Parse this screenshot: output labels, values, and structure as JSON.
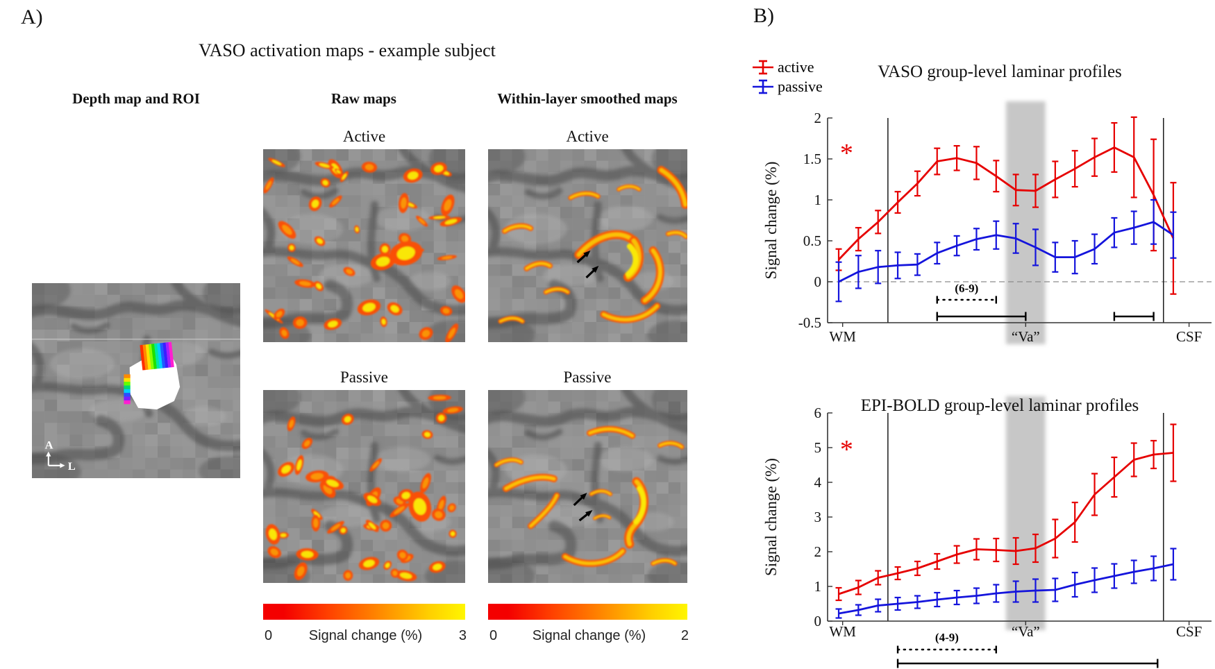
{
  "panel_a": {
    "label": "A)",
    "title": "VASO activation maps - example subject",
    "column_headers": [
      "Depth map and ROI",
      "Raw maps",
      "Within-layer smoothed maps"
    ],
    "row_labels": {
      "active": "Active",
      "passive": "Passive"
    },
    "orientation_labels": {
      "up": "A",
      "right": "L"
    },
    "hot_colormap": [
      "#f40000",
      "#ff4000",
      "#ff9000",
      "#ffcf00",
      "#fff600"
    ],
    "colorbars": [
      {
        "min": "0",
        "label": "Signal change (%)",
        "max": "3"
      },
      {
        "min": "0",
        "label": "Signal change (%)",
        "max": "2"
      }
    ]
  },
  "panel_b": {
    "label": "B)",
    "legend": [
      {
        "label": "active",
        "color": "#e60000"
      },
      {
        "label": "passive",
        "color": "#1414dc"
      }
    ]
  },
  "chart_data": [
    {
      "type": "line",
      "title": "VASO group-level laminar profiles",
      "ylabel": "Signal change (%)",
      "ylim": [
        -0.5,
        2
      ],
      "yticks": [
        -0.5,
        0,
        0.5,
        1,
        1.5,
        2
      ],
      "n_layers": 18,
      "x_axis_labels": [
        {
          "text": "WM",
          "pos": 1.2
        },
        {
          "text": "“Va”",
          "pos": 10.5
        },
        {
          "text": "CSF",
          "pos": 18.8
        }
      ],
      "zero_line_dashed": true,
      "gm_boundary_lines": [
        3.5,
        17.5
      ],
      "va_band": {
        "center": 10.5,
        "half_width_points": 1.0
      },
      "significance_marker": {
        "text": "*",
        "color": "#e60000",
        "x": 1.4,
        "y": 1.55
      },
      "series": [
        {
          "name": "active",
          "color": "#e60000",
          "values": [
            0.27,
            0.52,
            0.73,
            0.97,
            1.2,
            1.47,
            1.51,
            1.45,
            1.29,
            1.12,
            1.11,
            1.25,
            1.38,
            1.52,
            1.64,
            1.52,
            1.06,
            0.53
          ],
          "errors": [
            0.13,
            0.14,
            0.14,
            0.13,
            0.15,
            0.16,
            0.15,
            0.2,
            0.19,
            0.19,
            0.2,
            0.22,
            0.22,
            0.23,
            0.3,
            0.49,
            0.68,
            0.68
          ]
        },
        {
          "name": "passive",
          "color": "#1414dc",
          "values": [
            0.0,
            0.12,
            0.18,
            0.2,
            0.21,
            0.35,
            0.44,
            0.52,
            0.57,
            0.53,
            0.42,
            0.3,
            0.3,
            0.4,
            0.6,
            0.66,
            0.73,
            0.57
          ],
          "errors": [
            0.24,
            0.2,
            0.2,
            0.16,
            0.13,
            0.13,
            0.12,
            0.13,
            0.17,
            0.18,
            0.22,
            0.18,
            0.2,
            0.18,
            0.18,
            0.2,
            0.27,
            0.28
          ]
        }
      ],
      "brackets": [
        {
          "style": "dotted",
          "label": "(6-9)",
          "from": 6,
          "to": 9
        },
        {
          "style": "solid",
          "from": 6,
          "to": 10.5
        },
        {
          "style": "solid",
          "from": 15,
          "to": 17
        }
      ]
    },
    {
      "type": "line",
      "title": "EPI-BOLD group-level laminar profiles",
      "ylabel": "Signal change (%)",
      "ylim": [
        0,
        6
      ],
      "yticks": [
        0,
        1,
        2,
        3,
        4,
        5,
        6
      ],
      "n_layers": 18,
      "x_axis_labels": [
        {
          "text": "WM",
          "pos": 1.2
        },
        {
          "text": "“Va”",
          "pos": 10.5
        },
        {
          "text": "CSF",
          "pos": 18.8
        }
      ],
      "zero_line_dashed": false,
      "gm_boundary_lines": [
        3.5,
        17.5
      ],
      "va_band": {
        "center": 10.5,
        "half_width_points": 1.0
      },
      "significance_marker": {
        "text": "*",
        "color": "#e60000",
        "x": 1.4,
        "y": 4.9
      },
      "series": [
        {
          "name": "active",
          "color": "#e60000",
          "values": [
            0.78,
            0.97,
            1.25,
            1.38,
            1.52,
            1.72,
            1.92,
            2.07,
            2.05,
            2.02,
            2.1,
            2.38,
            2.85,
            3.65,
            4.15,
            4.65,
            4.8,
            4.85
          ],
          "errors": [
            0.18,
            0.2,
            0.2,
            0.18,
            0.2,
            0.22,
            0.25,
            0.3,
            0.33,
            0.38,
            0.4,
            0.55,
            0.57,
            0.6,
            0.57,
            0.48,
            0.4,
            0.82
          ]
        },
        {
          "name": "passive",
          "color": "#1414dc",
          "values": [
            0.22,
            0.32,
            0.45,
            0.5,
            0.55,
            0.62,
            0.68,
            0.73,
            0.8,
            0.85,
            0.88,
            0.9,
            1.05,
            1.18,
            1.3,
            1.42,
            1.52,
            1.64
          ],
          "errors": [
            0.13,
            0.15,
            0.18,
            0.18,
            0.18,
            0.2,
            0.2,
            0.22,
            0.25,
            0.3,
            0.33,
            0.33,
            0.35,
            0.35,
            0.35,
            0.33,
            0.35,
            0.45
          ]
        }
      ],
      "brackets": [
        {
          "style": "dotted",
          "label": "(4-9)",
          "from": 4,
          "to": 9
        },
        {
          "style": "solid",
          "from": 4,
          "to": 17.2
        }
      ]
    }
  ]
}
